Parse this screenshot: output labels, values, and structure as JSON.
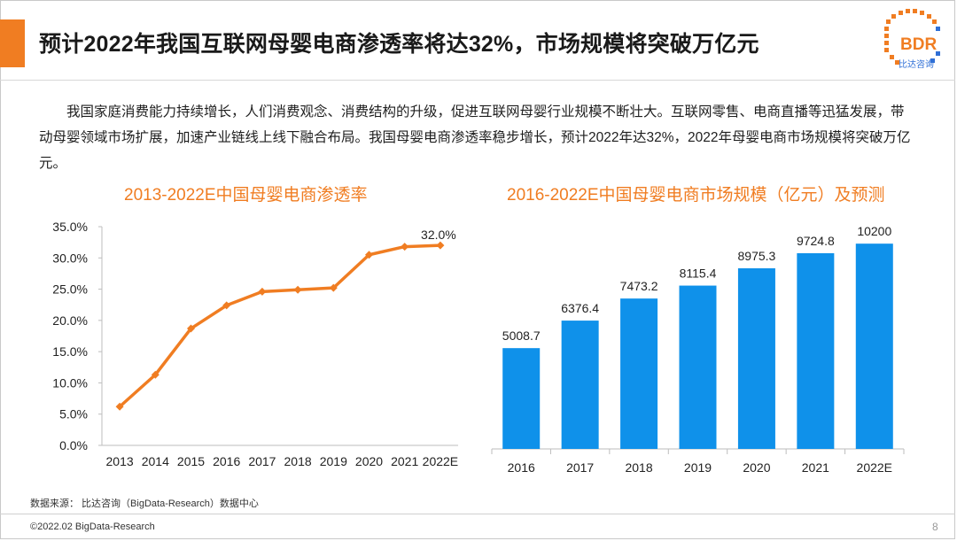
{
  "header": {
    "title": "预计2022年我国互联网母婴电商渗透率将达32%，市场规模将突破万亿元",
    "logo_text": "BDR",
    "logo_sub": "比达咨询"
  },
  "intro": {
    "text": "我国家庭消费能力持续增长，人们消费观念、消费结构的升级，促进互联网母婴行业规模不断壮大。互联网零售、电商直播等迅猛发展，带动母婴领域市场扩展，加速产业链线上线下融合布局。我国母婴电商渗透率稳步增长，预计2022年达32%，2022年母婴电商市场规模将突破万亿元。"
  },
  "colors": {
    "accent": "#f07d22",
    "bar": "#0f91ea",
    "line": "#f07d22"
  },
  "chart_data": [
    {
      "type": "line",
      "title": "2013-2022E中国母婴电商渗透率",
      "categories": [
        "2013",
        "2014",
        "2015",
        "2016",
        "2017",
        "2018",
        "2019",
        "2020",
        "2021",
        "2022E"
      ],
      "values": [
        6.2,
        11.3,
        18.7,
        22.4,
        24.6,
        24.9,
        25.2,
        30.5,
        31.8,
        32.0
      ],
      "unit": "%",
      "ylim": [
        0,
        35
      ],
      "yticks": [
        "0.0%",
        "5.0%",
        "10.0%",
        "15.0%",
        "20.0%",
        "25.0%",
        "30.0%",
        "35.0%"
      ],
      "data_labels": [
        {
          "index": 9,
          "text": "32.0%"
        }
      ],
      "xlabel": "",
      "ylabel": "",
      "grid": false
    },
    {
      "type": "bar",
      "title": "2016-2022E中国母婴电商市场规模（亿元）及预测",
      "categories": [
        "2016",
        "2017",
        "2018",
        "2019",
        "2020",
        "2021",
        "2022E"
      ],
      "values": [
        5008.7,
        6376.4,
        7473.2,
        8115.4,
        8975.3,
        9724.8,
        10200
      ],
      "labels": [
        "5008.7",
        "6376.4",
        "7473.2",
        "8115.4",
        "8975.3",
        "9724.8",
        "10200"
      ],
      "ylim": [
        0,
        11000
      ],
      "xlabel": "",
      "ylabel": "",
      "grid": false
    }
  ],
  "footer": {
    "source": "数据来源： 比达咨询（BigData-Research）数据中心",
    "copyright": "©2022.02 BigData-Research",
    "page": "8"
  }
}
